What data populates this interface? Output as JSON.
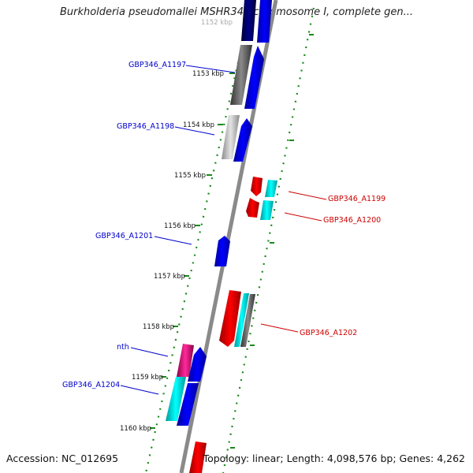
{
  "header": {
    "title": "Burkholderia pseudomallei MSHR346 chromosome I, complete gen..."
  },
  "footer": {
    "accession": "Accession: NC_012695",
    "summary": "Topology: linear; Length: 4,098,576 bp; Genes: 4,262"
  },
  "ruler": {
    "labels": [
      "1152 kbp",
      "1153 kbp",
      "1154 kbp",
      "1155 kbp",
      "1156 kbp",
      "1157 kbp",
      "1158 kbp",
      "1159 kbp",
      "1160 kbp"
    ]
  },
  "genes": {
    "left": [
      {
        "name": "GBP346_A1197",
        "color": "#0000cc"
      },
      {
        "name": "GBP346_A1198",
        "color": "#0000cc"
      },
      {
        "name": "GBP346_A1201",
        "color": "#0000cc"
      },
      {
        "name": "nth",
        "color": "#0000cc"
      },
      {
        "name": "GBP346_A1204",
        "color": "#0000cc"
      }
    ],
    "right": [
      {
        "name": "GBP346_A1199",
        "color": "#cc0000"
      },
      {
        "name": "GBP346_A1200",
        "color": "#cc0000"
      },
      {
        "name": "GBP346_A1202",
        "color": "#cc0000"
      }
    ]
  },
  "colors": {
    "forward": "#0000ff",
    "reverse": "#ff0000",
    "pseudo": "#808080",
    "cyan": "#00e5e5",
    "magenta": "#e0007a",
    "track": "#8a8a8a",
    "dots": "#1a8a1a"
  }
}
